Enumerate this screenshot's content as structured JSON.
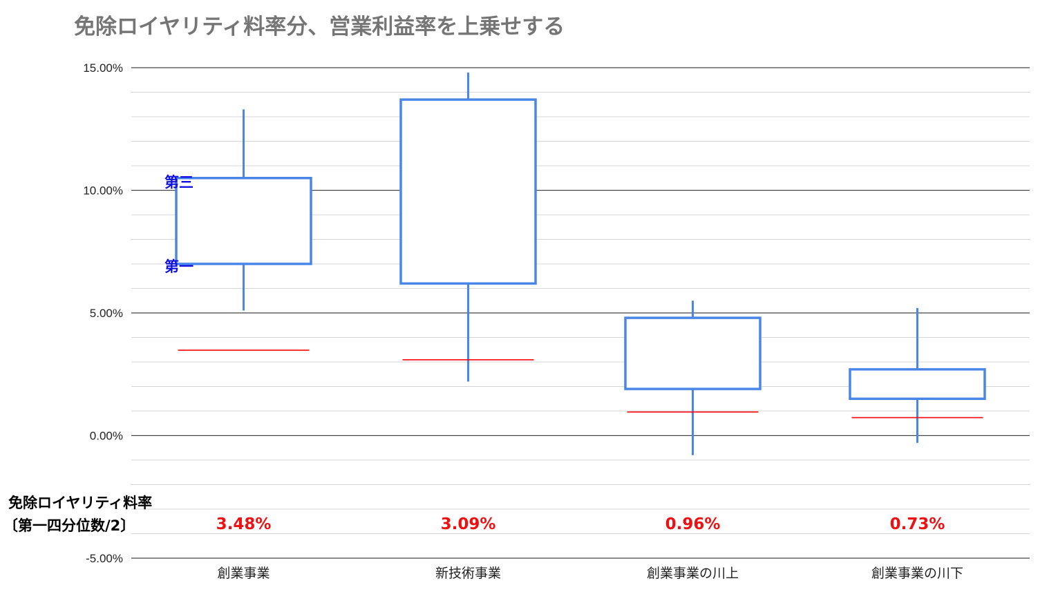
{
  "chart_data": {
    "type": "candlestick",
    "title": "免除ロイヤリティ料率分、営業利益率を上乗せする",
    "ylim": [
      -5,
      15
    ],
    "yticks": [
      "15.00%",
      "10.00%",
      "5.00%",
      "0.00%",
      "-5.00%"
    ],
    "ytick_values": [
      15,
      10,
      5,
      0,
      -5
    ],
    "categories": [
      "創業事業",
      "新技術事業",
      "創業事業の川上",
      "創業事業の川下"
    ],
    "boxes": [
      {
        "low": 5.1,
        "q1": 7.0,
        "q3": 10.5,
        "high": 13.3
      },
      {
        "low": 2.2,
        "q1": 6.2,
        "q3": 13.7,
        "high": 14.8
      },
      {
        "low": -0.8,
        "q1": 1.9,
        "q3": 4.8,
        "high": 5.5
      },
      {
        "low": -0.3,
        "q1": 1.5,
        "q3": 2.7,
        "high": 5.2
      }
    ],
    "royalty_values": [
      3.48,
      3.09,
      0.96,
      0.73
    ],
    "royalty_labels": [
      "3.48%",
      "3.09%",
      "0.96%",
      "0.73%"
    ],
    "box_color": "#4a86e8",
    "royalty_line_color": "#ff0000",
    "annotations": {
      "q3_label": "第三",
      "q1_label": "第一",
      "royalty_row_label_1": "免除ロイヤリティ料率",
      "royalty_row_label_2": "〔第一四分位数/2〕"
    },
    "grid": true
  }
}
